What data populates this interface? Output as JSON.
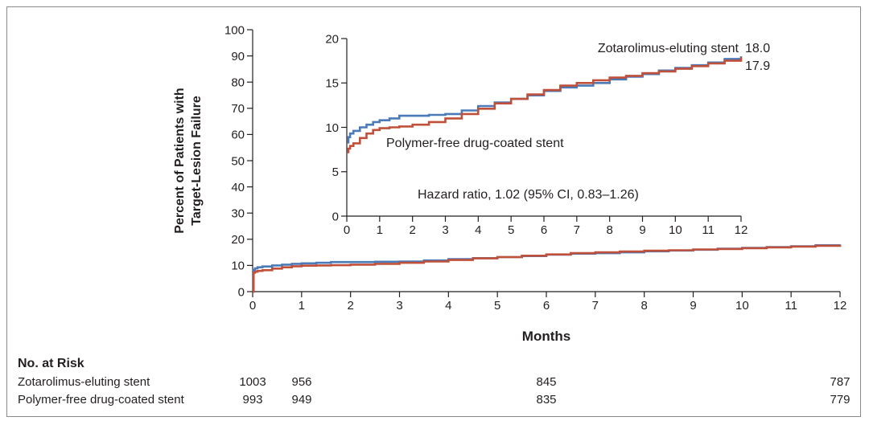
{
  "chart_data": {
    "type": "line",
    "ylabel_line1": "Percent of Patients with",
    "ylabel_line2": "Target-Lesion Failure",
    "xlabel": "Months",
    "xlim": [
      0,
      12
    ],
    "ylim": [
      0,
      100
    ],
    "x_ticks": [
      "0",
      "1",
      "2",
      "3",
      "4",
      "5",
      "6",
      "7",
      "8",
      "9",
      "10",
      "11",
      "12"
    ],
    "y_ticks": [
      "0",
      "10",
      "20",
      "30",
      "40",
      "50",
      "60",
      "70",
      "80",
      "90",
      "100"
    ],
    "series": [
      {
        "name": "Zotarolimus-eluting stent",
        "color": "#4a7ab8",
        "final_value": "18.0",
        "x": [
          0,
          0.02,
          0.05,
          0.1,
          0.2,
          0.4,
          0.6,
          0.8,
          1.0,
          1.3,
          1.6,
          2.0,
          2.5,
          3.0,
          3.5,
          4.0,
          4.5,
          5.0,
          5.5,
          6.0,
          6.5,
          7.0,
          7.5,
          8.0,
          8.5,
          9.0,
          9.5,
          10.0,
          10.5,
          11.0,
          11.5,
          12.0
        ],
        "y": [
          0,
          8.3,
          8.9,
          9.3,
          9.6,
          10.0,
          10.3,
          10.6,
          10.8,
          11.0,
          11.3,
          11.3,
          11.4,
          11.5,
          11.9,
          12.4,
          12.8,
          13.2,
          13.6,
          14.1,
          14.5,
          14.7,
          15.0,
          15.4,
          15.7,
          16.0,
          16.4,
          16.7,
          17.0,
          17.3,
          17.7,
          18.0
        ]
      },
      {
        "name": "Polymer-free drug-coated stent",
        "color": "#c0503a",
        "final_value": "17.9",
        "x": [
          0,
          0.02,
          0.05,
          0.1,
          0.2,
          0.4,
          0.6,
          0.8,
          1.0,
          1.3,
          1.6,
          2.0,
          2.5,
          3.0,
          3.5,
          4.0,
          4.5,
          5.0,
          5.5,
          6.0,
          6.5,
          7.0,
          7.5,
          8.0,
          8.5,
          9.0,
          9.5,
          10.0,
          10.5,
          11.0,
          11.5,
          12.0
        ],
        "y": [
          0,
          7.2,
          7.6,
          7.9,
          8.2,
          8.8,
          9.3,
          9.7,
          9.9,
          10.0,
          10.1,
          10.3,
          10.6,
          11.0,
          11.5,
          12.1,
          12.7,
          13.2,
          13.7,
          14.2,
          14.7,
          15.0,
          15.3,
          15.6,
          15.8,
          16.1,
          16.3,
          16.6,
          16.9,
          17.2,
          17.5,
          17.9
        ]
      }
    ],
    "inset": {
      "xlim": [
        0,
        12
      ],
      "ylim": [
        0,
        20
      ],
      "x_ticks": [
        "0",
        "1",
        "2",
        "3",
        "4",
        "5",
        "6",
        "7",
        "8",
        "9",
        "10",
        "11",
        "12"
      ],
      "y_ticks": [
        "0",
        "5",
        "10",
        "15",
        "20"
      ],
      "hazard_ratio_text": "Hazard ratio, 1.02 (95% CI, 0.83–1.26)",
      "label_zotarolimus": "Zotarolimus-eluting stent",
      "label_polymer_free": "Polymer-free drug-coated stent"
    }
  },
  "risk_table": {
    "title": "No. at Risk",
    "rows": [
      {
        "label": "Zotarolimus-eluting stent",
        "values": [
          "1003",
          "956",
          "845",
          "787"
        ]
      },
      {
        "label": "Polymer-free drug-coated stent",
        "values": [
          "993",
          "949",
          "835",
          "779"
        ]
      }
    ],
    "months": [
      0,
      1,
      6,
      12
    ]
  }
}
